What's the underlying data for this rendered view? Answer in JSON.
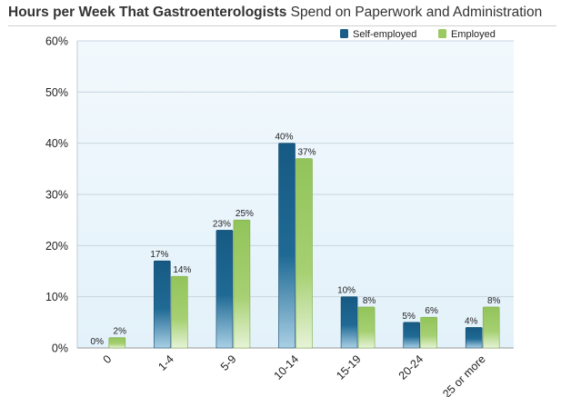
{
  "title": {
    "bold": "Hours per Week That Gastroenterologists",
    "rest": " Spend on Paperwork and Administration"
  },
  "colors": {
    "self_employed": "#1a5d86",
    "employed": "#9bca63",
    "plot_bg": "#e9f4fb"
  },
  "chart_data": {
    "type": "bar",
    "title": "Hours per Week That Gastroenterologists Spend on Paperwork and Administration",
    "categories": [
      "0",
      "1-4",
      "5-9",
      "10-14",
      "15-19",
      "20-24",
      "25 or more"
    ],
    "series": [
      {
        "name": "Self-employed",
        "values": [
          0,
          17,
          23,
          40,
          10,
          5,
          4
        ],
        "labels": [
          "0%",
          "17%",
          "23%",
          "40%",
          "10%",
          "5%",
          "4%"
        ]
      },
      {
        "name": "Employed",
        "values": [
          2,
          14,
          25,
          37,
          8,
          6,
          8
        ],
        "labels": [
          "2%",
          "14%",
          "25%",
          "37%",
          "8%",
          "6%",
          "8%"
        ]
      }
    ],
    "ylim": [
      0,
      60
    ],
    "yticks": [
      0,
      10,
      20,
      30,
      40,
      50,
      60
    ],
    "ytick_labels": [
      "0%",
      "10%",
      "20%",
      "30%",
      "40%",
      "50%",
      "60%"
    ],
    "xlabel": "",
    "ylabel": "",
    "grid": true,
    "legend": "top-right"
  }
}
